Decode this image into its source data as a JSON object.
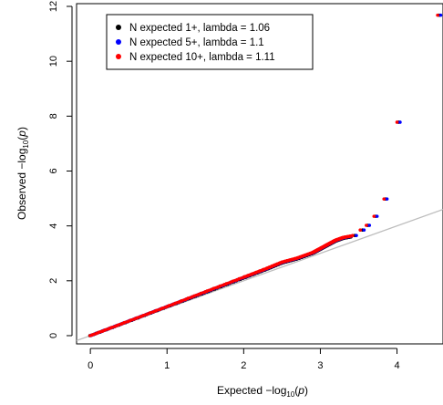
{
  "chart_data": {
    "type": "scatter",
    "title": "",
    "xlabel": "Expected  -log10(p)",
    "ylabel": "Observed  -log10(p)",
    "xlim": [
      -0.18,
      4.6
    ],
    "ylim": [
      -0.3,
      12.1
    ],
    "x_ticks": [
      0,
      1,
      2,
      3,
      4
    ],
    "y_ticks": [
      0,
      2,
      4,
      6,
      8,
      10,
      12
    ],
    "x_tick_labels": [
      "0",
      "1",
      "2",
      "3",
      "4"
    ],
    "y_tick_labels": [
      "0",
      "2",
      "4",
      "6",
      "8",
      "10",
      "12"
    ],
    "grid": false,
    "legend_position": "top-left",
    "reference_line": {
      "slope": 1,
      "intercept": 0,
      "color": "#bdbdbd"
    },
    "series": [
      {
        "name": "N expected 1+, lambda = 1.06",
        "color": "#000000",
        "curve": [
          [
            0.0,
            0.0
          ],
          [
            0.5,
            0.52
          ],
          [
            1.0,
            1.05
          ],
          [
            1.5,
            1.57
          ],
          [
            2.0,
            2.1
          ],
          [
            2.3,
            2.42
          ],
          [
            2.5,
            2.65
          ],
          [
            2.7,
            2.8
          ],
          [
            2.9,
            3.0
          ],
          [
            3.0,
            3.15
          ],
          [
            3.1,
            3.3
          ],
          [
            3.2,
            3.45
          ],
          [
            3.3,
            3.55
          ],
          [
            3.4,
            3.6
          ]
        ],
        "outliers": [
          [
            3.45,
            3.65
          ],
          [
            3.55,
            3.85
          ],
          [
            3.62,
            4.02
          ],
          [
            3.72,
            4.35
          ],
          [
            3.85,
            4.98
          ],
          [
            4.02,
            7.78
          ],
          [
            4.55,
            11.68
          ]
        ]
      },
      {
        "name": "N expected 5+, lambda = 1.1",
        "color": "#0000ff",
        "curve": [
          [
            0.0,
            0.0
          ],
          [
            0.5,
            0.53
          ],
          [
            1.0,
            1.06
          ],
          [
            1.5,
            1.59
          ],
          [
            2.0,
            2.12
          ],
          [
            2.3,
            2.44
          ],
          [
            2.5,
            2.67
          ],
          [
            2.7,
            2.82
          ],
          [
            2.9,
            3.02
          ],
          [
            3.0,
            3.17
          ],
          [
            3.1,
            3.32
          ],
          [
            3.2,
            3.47
          ],
          [
            3.3,
            3.57
          ],
          [
            3.4,
            3.62
          ]
        ],
        "outliers": [
          [
            3.47,
            3.65
          ],
          [
            3.57,
            3.85
          ],
          [
            3.64,
            4.02
          ],
          [
            3.74,
            4.35
          ],
          [
            3.87,
            4.98
          ],
          [
            4.04,
            7.78
          ],
          [
            4.57,
            11.68
          ]
        ]
      },
      {
        "name": "N expected 10+, lambda = 1.11",
        "color": "#ff0000",
        "curve": [
          [
            0.0,
            0.0
          ],
          [
            0.5,
            0.53
          ],
          [
            1.0,
            1.06
          ],
          [
            1.5,
            1.6
          ],
          [
            2.0,
            2.13
          ],
          [
            2.3,
            2.45
          ],
          [
            2.5,
            2.68
          ],
          [
            2.7,
            2.83
          ],
          [
            2.9,
            3.03
          ],
          [
            3.0,
            3.18
          ],
          [
            3.1,
            3.33
          ],
          [
            3.2,
            3.48
          ],
          [
            3.3,
            3.58
          ],
          [
            3.4,
            3.63
          ]
        ],
        "outliers": [
          [
            3.42,
            3.65
          ],
          [
            3.52,
            3.85
          ],
          [
            3.6,
            4.02
          ],
          [
            3.7,
            4.35
          ],
          [
            3.83,
            4.98
          ],
          [
            4.0,
            7.78
          ],
          [
            4.53,
            11.68
          ]
        ]
      }
    ]
  }
}
